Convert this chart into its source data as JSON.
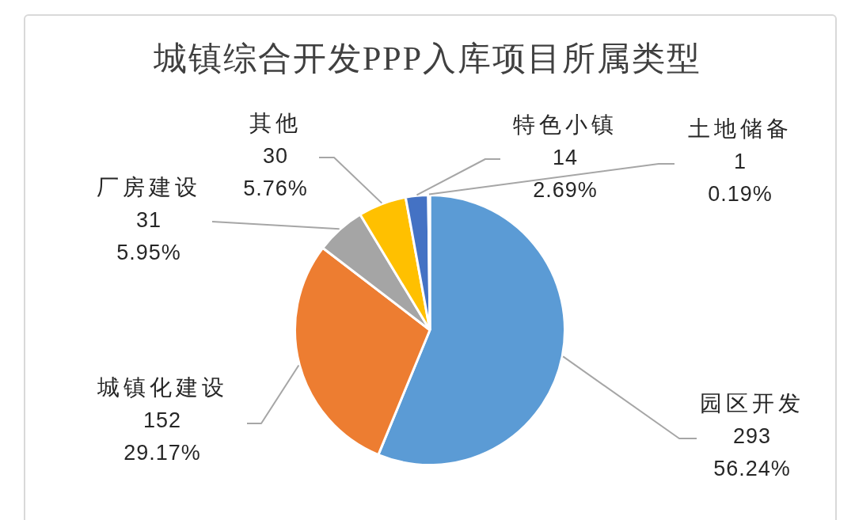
{
  "chart_data": {
    "type": "pie",
    "title": "城镇综合开发PPP入库项目所属类型",
    "categories": [
      "园区开发",
      "城镇化建设",
      "厂房建设",
      "其他",
      "特色小镇",
      "土地储备"
    ],
    "values": [
      293,
      152,
      31,
      30,
      14,
      1
    ],
    "colors": [
      "#5b9bd5",
      "#ed7d31",
      "#a5a5a5",
      "#ffc000",
      "#4472c4",
      "#70ad47"
    ],
    "value_labels": [
      "293\n56.24%",
      "152\n29.17%",
      "31\n5.95%",
      "30\n5.76%",
      "14\n2.69%",
      "1\n0.19%"
    ],
    "legend": false
  }
}
